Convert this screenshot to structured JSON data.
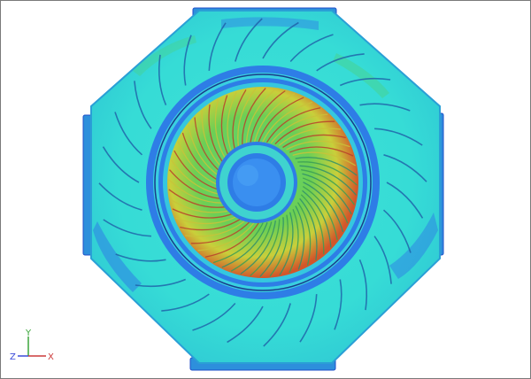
{
  "viewport": {
    "background": "#ffffff",
    "contour_colors": {
      "deep_blue": "#1f4fc9",
      "blue": "#2e7de6",
      "cyan": "#2fd3d8",
      "light_cyan": "#45e6d6",
      "green": "#4fcf6e",
      "yellow": "#c9d93a",
      "orange": "#d98a2a",
      "red": "#c83a1e"
    }
  },
  "triad": {
    "x_label": "X",
    "y_label": "Y",
    "z_label": "Z",
    "x_color": "#cc3a3a",
    "y_color": "#3aa63a",
    "z_color": "#3a4ad9"
  }
}
